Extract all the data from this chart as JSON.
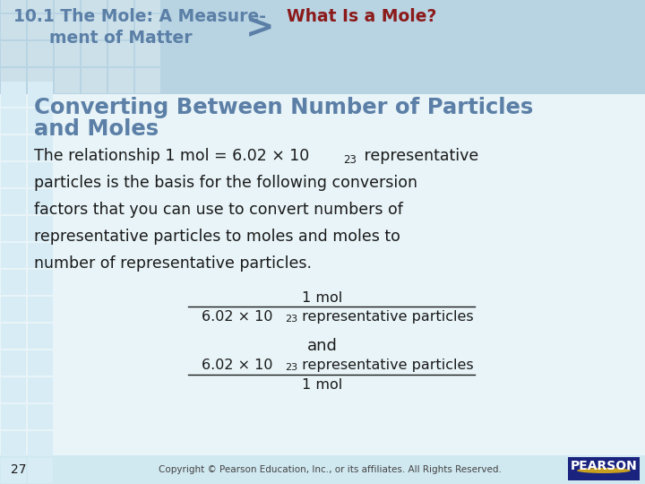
{
  "title_left_line1": "10.1 The Mole: A Measure-",
  "title_left_line2": "ment of Matter",
  "title_right": "What Is a Mole?",
  "title_left_color": "#5b7fa6",
  "title_right_color": "#8b1a1a",
  "arrow_color": "#5b7fa6",
  "section_title_line1": "Converting Between Number of Particles",
  "section_title_line2": "and Moles",
  "section_title_color": "#5b7fa6",
  "body_lines": [
    "The relationship 1 mol = 6.02 × 10²³ representative",
    "particles is the basis for the following conversion",
    "factors that you can use to convert numbers of",
    "representative particles to moles and moles to",
    "number of representative particles."
  ],
  "frac1_num": "1 mol",
  "frac1_den_pre": "6.02 × 10",
  "frac1_den_sup": "23",
  "frac1_den_post": " representative particles",
  "and_text": "and",
  "frac2_num_pre": "6.02 × 10",
  "frac2_num_sup": "23",
  "frac2_num_post": " representative particles",
  "frac2_den": "1 mol",
  "page_num": "27",
  "copyright": "Copyright © Pearson Education, Inc., or its affiliates. All Rights Reserved.",
  "pearson_text": "PEARSON",
  "text_color": "#1a1a1a",
  "white_color": "#ffffff",
  "header_bg": "#b8d4e3",
  "grid_cell_bg": "#cce0ea",
  "body_bg": "#e8f4f8",
  "body_right_bg": "#f2f9fc",
  "pearson_bg": "#1a237e",
  "grid_body_bg": "#d8ecf5",
  "footer_bg": "#d0e8f0"
}
